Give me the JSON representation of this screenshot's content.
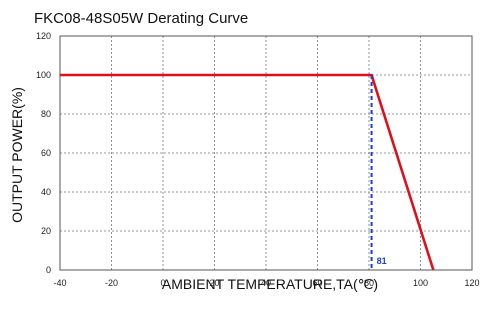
{
  "chart_data": {
    "type": "line",
    "title": "FKC08-48S05W Derating Curve",
    "xlabel": "AMBIENT TEMPERATURE,TA(℃)",
    "ylabel": "OUTPUT POWER(%)",
    "xlim": [
      -40,
      120
    ],
    "ylim": [
      0,
      120
    ],
    "x_ticks": [
      -40,
      -20,
      0,
      20,
      40,
      60,
      80,
      100,
      120
    ],
    "y_ticks": [
      0,
      20,
      40,
      60,
      80,
      100,
      120
    ],
    "grid": true,
    "series": [
      {
        "x": [
          -40,
          81,
          105
        ],
        "y": [
          100,
          100,
          0
        ],
        "color": "#e0101a"
      }
    ],
    "annotations": [
      {
        "text": "81",
        "x": 81,
        "color": "#1a3fd0"
      }
    ]
  }
}
